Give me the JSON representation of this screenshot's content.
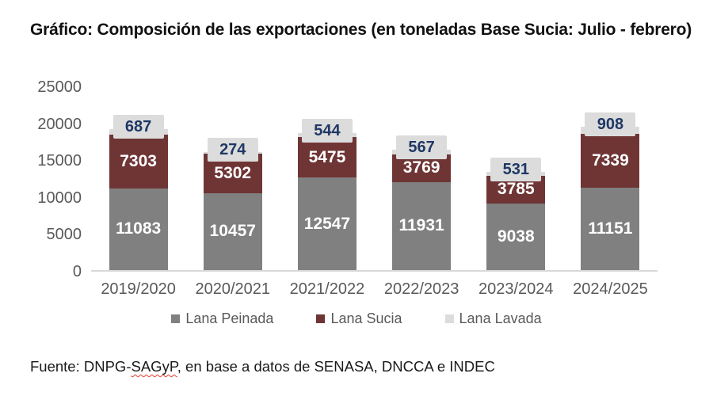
{
  "title": "Gráfico: Composición de las exportaciones (en toneladas Base Sucia: Julio - febrero)",
  "footer": {
    "prefix": "Fuente: DNPG-",
    "underlined": "SAGyP",
    "suffix": ", en base a datos de SENASA, DNCCA e INDEC"
  },
  "colors": {
    "lana_peinada": "#808080",
    "lana_sucia": "#6f3535",
    "lana_lavada": "#dcdcdc",
    "label_box_bg": "#dcdcdc",
    "label_box_text": "#1f3864",
    "segment_label_text": "#ffffff",
    "axis_text": "#595959",
    "axis_line": "#d9d9d9",
    "spellcheck_underline": "#e03c31"
  },
  "chart_data": {
    "type": "bar",
    "stacked": true,
    "title": "Gráfico: Composición de las exportaciones (en toneladas Base Sucia: Julio - febrero)",
    "categories": [
      "2019/2020",
      "2020/2021",
      "2021/2022",
      "2022/2023",
      "2023/2024",
      "2024/2025"
    ],
    "series": [
      {
        "name": "Lana Peinada",
        "color": "#808080",
        "label_color": "#ffffff",
        "label_style": "inside",
        "values": [
          11083,
          10457,
          12547,
          11931,
          9038,
          11151
        ]
      },
      {
        "name": "Lana Sucia",
        "color": "#6f3535",
        "label_color": "#ffffff",
        "label_style": "inside",
        "values": [
          7303,
          5302,
          5475,
          3769,
          3785,
          7339
        ]
      },
      {
        "name": "Lana Lavada",
        "color": "#dcdcdc",
        "label_color": "#1f3864",
        "label_style": "boxed-outside",
        "values": [
          687,
          274,
          544,
          567,
          531,
          908
        ]
      }
    ],
    "y_axis": {
      "min": 0,
      "max": 25000,
      "ticks": [
        0,
        5000,
        10000,
        15000,
        20000,
        25000
      ]
    },
    "xlabel": "",
    "ylabel": "",
    "grid": false,
    "legend_position": "bottom"
  }
}
